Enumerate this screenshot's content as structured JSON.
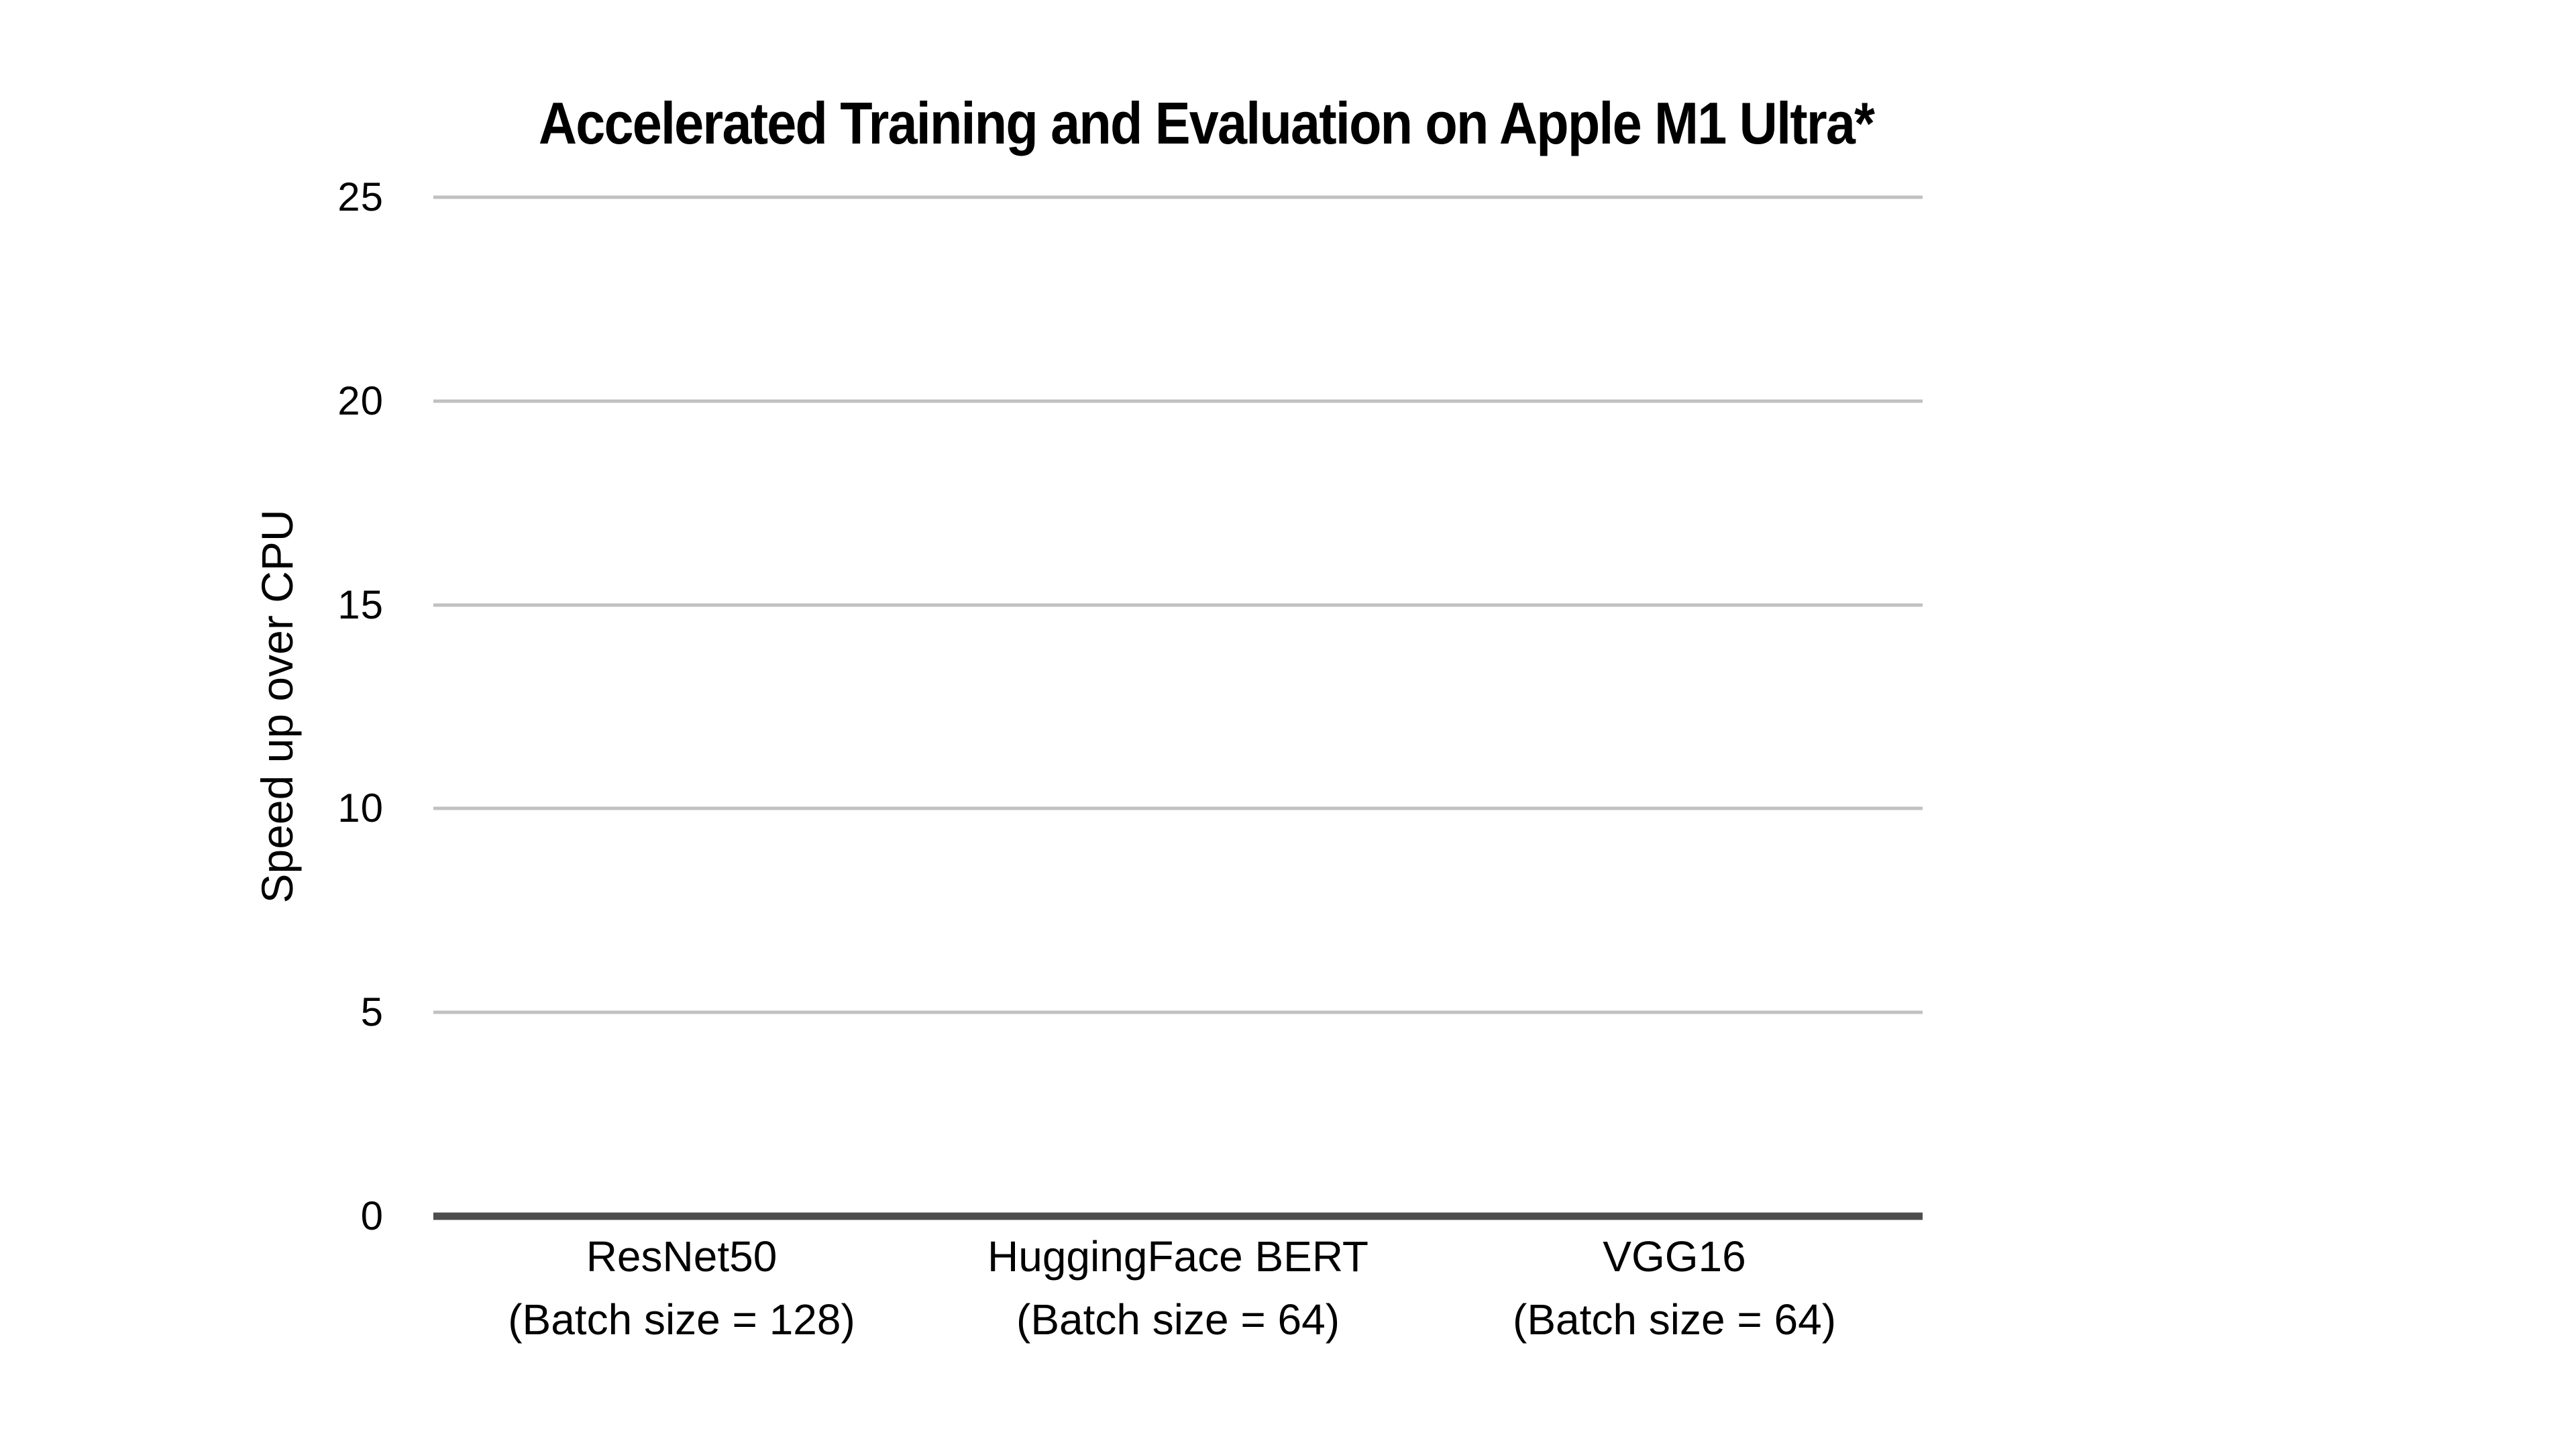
{
  "chart_data": {
    "type": "bar",
    "title": "Accelerated Training and Evaluation on Apple M1 Ultra*",
    "ylabel": "Speed up over CPU",
    "xlabel": "",
    "categories": [
      {
        "label": "ResNet50",
        "sublabel": "(Batch size = 128)"
      },
      {
        "label": "HuggingFace BERT",
        "sublabel": "(Batch size = 64)"
      },
      {
        "label": "VGG16",
        "sublabel": "(Batch size = 64)"
      }
    ],
    "values": [
      0,
      0,
      0
    ],
    "bars_visible": false,
    "yticks": [
      0,
      5,
      10,
      15,
      20,
      25
    ],
    "ylim": [
      0,
      25
    ],
    "grid": "horizontal",
    "legend": "none",
    "colors": {
      "background": "#ffffff",
      "text": "#000000",
      "gridline": "#c1c1c1",
      "baseline": "#4d4d4d"
    }
  }
}
